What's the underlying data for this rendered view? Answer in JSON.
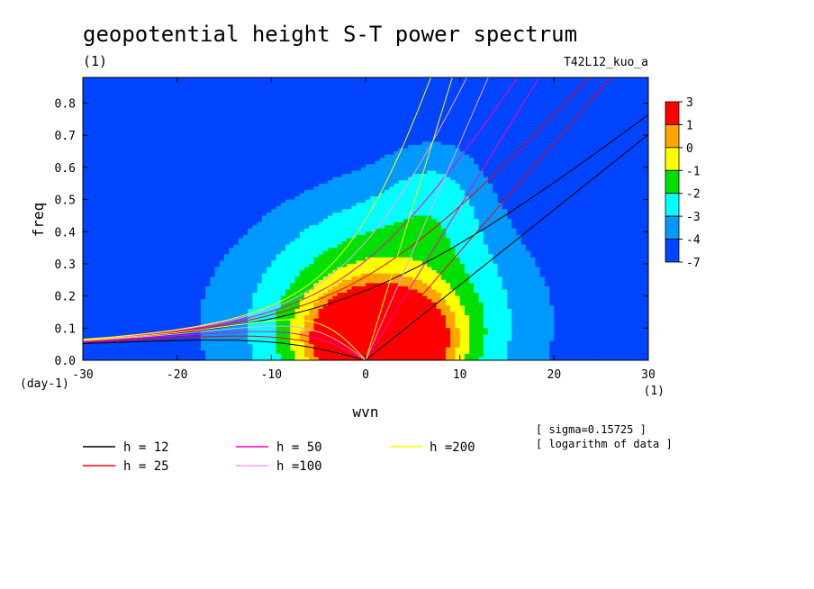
{
  "chart_data": {
    "type": "heatmap",
    "title": "geopotential height S-T power spectrum",
    "subtitle": "(1)",
    "run_label": "T42L12_kuo_a",
    "xlabel": "wvn",
    "x_unit": "(1)",
    "ylabel": "freq",
    "y_unit": "(day-1)",
    "xlim": [
      -30,
      30
    ],
    "ylim": [
      0,
      0.88
    ],
    "x_ticks": [
      -30,
      -20,
      -10,
      0,
      10,
      20,
      30
    ],
    "y_ticks": [
      0.0,
      0.1,
      0.2,
      0.3,
      0.4,
      0.5,
      0.6,
      0.7,
      0.8
    ],
    "colorbar": {
      "labels": [
        "3",
        "1",
        "0",
        "-1",
        "-2",
        "-3",
        "-4",
        "-7"
      ],
      "colors": [
        "#ff0000",
        "#ffa500",
        "#ffff00",
        "#00e000",
        "#00ffff",
        "#0099ff",
        "#0044ff"
      ]
    },
    "contour_levels": [
      -7,
      -4,
      -3,
      -2,
      -1,
      0,
      1,
      3
    ],
    "dispersion_curves": [
      {
        "name": "h = 12",
        "h": 12,
        "color": "#000000"
      },
      {
        "name": "h = 25",
        "h": 25,
        "color": "#ff0000"
      },
      {
        "name": "h = 50",
        "h": 50,
        "color": "#ff00c0"
      },
      {
        "name": "h =100",
        "h": 100,
        "color": "#f0a0f0"
      },
      {
        "name": "h =200",
        "h": 200,
        "color": "#ffff00"
      }
    ],
    "annotations": [
      "[ sigma=0.15725 ]",
      "[ logarithm of data ]"
    ]
  }
}
